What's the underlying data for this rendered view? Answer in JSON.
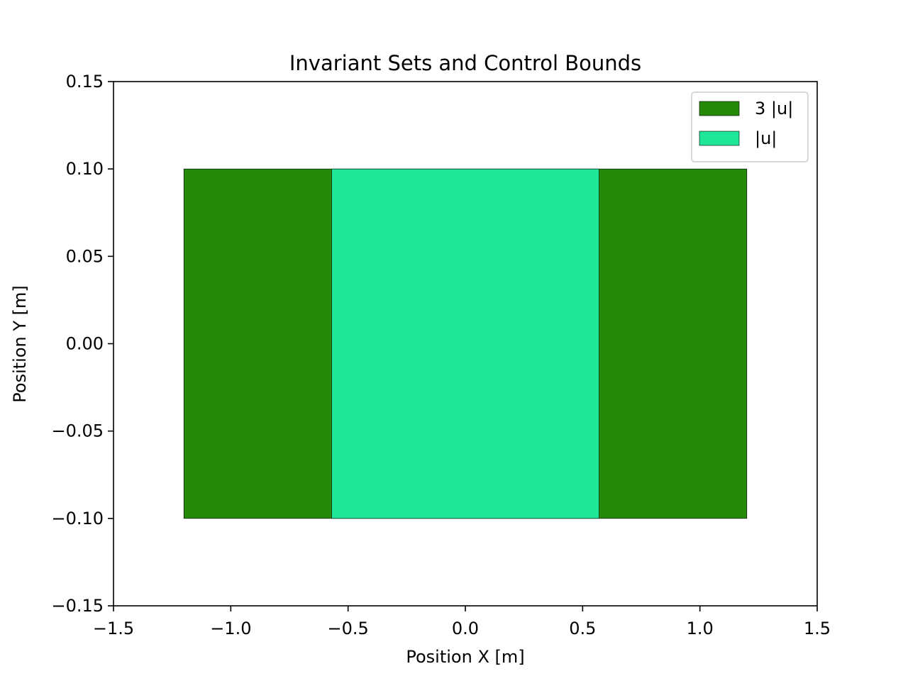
{
  "chart_data": {
    "type": "area",
    "title": "Invariant Sets and Control Bounds",
    "xlabel": "Position X [m]",
    "ylabel": "Position Y [m]",
    "xlim": [
      -1.5,
      1.5
    ],
    "ylim": [
      -0.15,
      0.15
    ],
    "xticks": [
      -1.5,
      -1.0,
      -0.5,
      0.0,
      0.5,
      1.0,
      1.5
    ],
    "xtick_labels": [
      "−1.5",
      "−1.0",
      "−0.5",
      "0.0",
      "0.5",
      "1.0",
      "1.5"
    ],
    "yticks": [
      -0.15,
      -0.1,
      -0.05,
      0.0,
      0.05,
      0.1,
      0.15
    ],
    "ytick_labels": [
      "−0.15",
      "−0.10",
      "−0.05",
      "0.00",
      "0.05",
      "0.10",
      "0.15"
    ],
    "grid": false,
    "legend_position": "top-right",
    "series": [
      {
        "name": "3 |u|",
        "color": "#26890a",
        "x_range": [
          -1.2,
          1.2
        ],
        "y_range": [
          -0.1,
          0.1
        ]
      },
      {
        "name": "|u|",
        "color": "#1fe699",
        "x_range": [
          -0.57,
          0.57
        ],
        "y_range": [
          -0.1,
          0.1
        ]
      }
    ]
  }
}
